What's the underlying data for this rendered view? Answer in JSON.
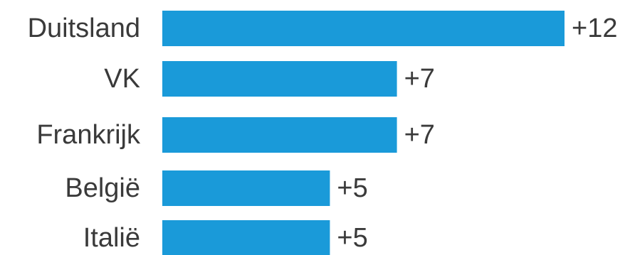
{
  "chart_data": {
    "type": "bar",
    "orientation": "horizontal",
    "categories": [
      "Duitsland",
      "VK",
      "Frankrijk",
      "België",
      "Italië"
    ],
    "values": [
      12,
      7,
      7,
      5,
      5
    ],
    "value_labels": [
      "+12",
      "+7",
      "+7",
      "+5",
      "+5"
    ],
    "title": "",
    "xlabel": "",
    "ylabel": "",
    "xlim": [
      0,
      12
    ],
    "grid": false,
    "legend": "none",
    "bar_color": "#1a9ad9"
  }
}
